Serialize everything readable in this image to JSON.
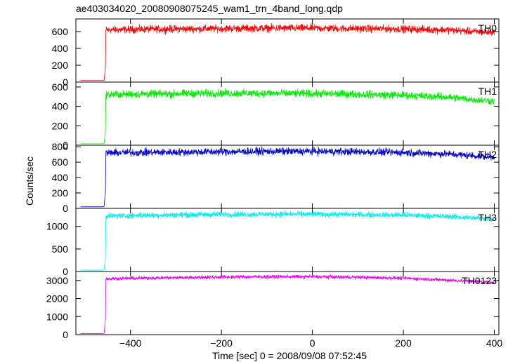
{
  "title": "ae403034020_20080908075245_wam1_trn_4band_long.qdp",
  "chart_data": {
    "type": "line",
    "title": "ae403034020_20080908075245_wam1_trn_4band_long.qdp",
    "xlabel": "Time [sec] 0 = 2008/09/08 07:52:45",
    "ylabel": "Counts/sec",
    "xlim": [
      -520,
      410
    ],
    "x_ticks": [
      -400,
      -200,
      0,
      200,
      400
    ],
    "x_tick_labels": [
      "−400",
      "−200",
      "0",
      "200",
      "400"
    ],
    "grid": false,
    "panels": [
      {
        "name": "TH0",
        "color": "#ff0000",
        "ylim": [
          0,
          750
        ],
        "y_ticks": [
          0,
          200,
          400,
          600
        ],
        "y_tick_labels": [
          "0",
          "200",
          "400",
          "600"
        ],
        "x": [
          -510,
          -462,
          -458,
          -455,
          -454,
          -400,
          -300,
          -200,
          -100,
          0,
          100,
          200,
          300,
          350,
          400
        ],
        "values": [
          20,
          20,
          22,
          180,
          620,
          625,
          630,
          635,
          640,
          640,
          635,
          630,
          620,
          600,
          590
        ]
      },
      {
        "name": "TH1",
        "color": "#00ee00",
        "ylim": [
          0,
          650
        ],
        "y_ticks": [
          0,
          200,
          400,
          600
        ],
        "y_tick_labels": [
          "0",
          "200",
          "400",
          "600"
        ],
        "x": [
          -510,
          -462,
          -458,
          -455,
          -454,
          -400,
          -300,
          -200,
          -100,
          0,
          100,
          200,
          300,
          350,
          400
        ],
        "values": [
          15,
          15,
          18,
          150,
          520,
          525,
          530,
          535,
          535,
          530,
          525,
          515,
          495,
          470,
          455
        ]
      },
      {
        "name": "TH2",
        "color": "#0000cc",
        "ylim": [
          0,
          820
        ],
        "y_ticks": [
          0,
          200,
          400,
          600,
          800
        ],
        "y_tick_labels": [
          "0",
          "200",
          "400",
          "600",
          "800"
        ],
        "x": [
          -510,
          -462,
          -458,
          -455,
          -454,
          -400,
          -300,
          -200,
          -100,
          0,
          100,
          200,
          300,
          350,
          400
        ],
        "values": [
          20,
          20,
          25,
          220,
          720,
          725,
          730,
          735,
          740,
          740,
          735,
          725,
          705,
          685,
          665
        ]
      },
      {
        "name": "TH3",
        "color": "#00eeee",
        "ylim": [
          0,
          1400
        ],
        "y_ticks": [
          0,
          500,
          1000
        ],
        "y_tick_labels": [
          "0",
          "500",
          "1000"
        ],
        "x": [
          -510,
          -462,
          -458,
          -455,
          -454,
          -400,
          -300,
          -200,
          -100,
          0,
          100,
          200,
          300,
          350,
          400
        ],
        "values": [
          30,
          30,
          35,
          300,
          1230,
          1240,
          1255,
          1265,
          1270,
          1270,
          1260,
          1250,
          1220,
          1190,
          1170
        ]
      },
      {
        "name": "TH0123",
        "color": "#ee00ee",
        "ylim": [
          0,
          3500
        ],
        "y_ticks": [
          0,
          1000,
          2000,
          3000
        ],
        "y_tick_labels": [
          "0",
          "1000",
          "2000",
          "3000"
        ],
        "x": [
          -510,
          -462,
          -458,
          -455,
          -454,
          -400,
          -300,
          -200,
          -100,
          0,
          100,
          200,
          300,
          350,
          400
        ],
        "values": [
          60,
          60,
          80,
          900,
          3100,
          3120,
          3160,
          3190,
          3210,
          3210,
          3180,
          3130,
          3020,
          2950,
          2900
        ]
      }
    ]
  }
}
